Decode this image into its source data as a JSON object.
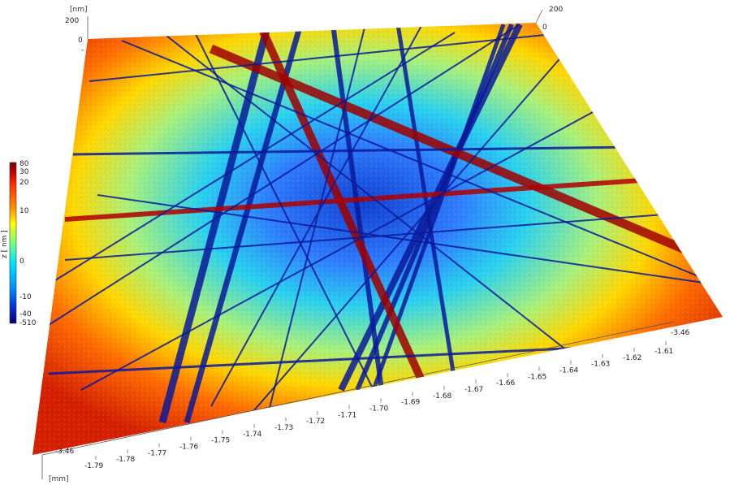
{
  "viewer": {
    "z_unit_top": "[nm]",
    "z_ticks_left": [
      "200",
      "0",
      "-"
    ],
    "z_ticks_right": [
      "200",
      "0"
    ],
    "x_axis": {
      "unit": "[mm]",
      "ticks": [
        "-1.79",
        "-1.78",
        "-1.77",
        "-1.76",
        "-1.75",
        "-1.74",
        "-1.73",
        "-1.72",
        "-1.71",
        "-1.70",
        "-1.69",
        "-1.68",
        "-1.67",
        "-1.66",
        "-1.65",
        "-1.64",
        "-1.63",
        "-1.62",
        "-1.61"
      ]
    },
    "y_axis": {
      "front_label": "-3.46",
      "right_label": "-3.46"
    },
    "colorbar": {
      "title": "z [ nm ]",
      "ticks": [
        "80",
        "30",
        "20",
        "10",
        "0",
        "-10",
        "-40",
        "-510"
      ],
      "colors": [
        "#7a0000",
        "#c00000",
        "#ff2a00",
        "#ff8c00",
        "#ffff00",
        "#7cff7c",
        "#00e5ff",
        "#0090ff",
        "#0030d0",
        "#000080"
      ]
    }
  }
}
